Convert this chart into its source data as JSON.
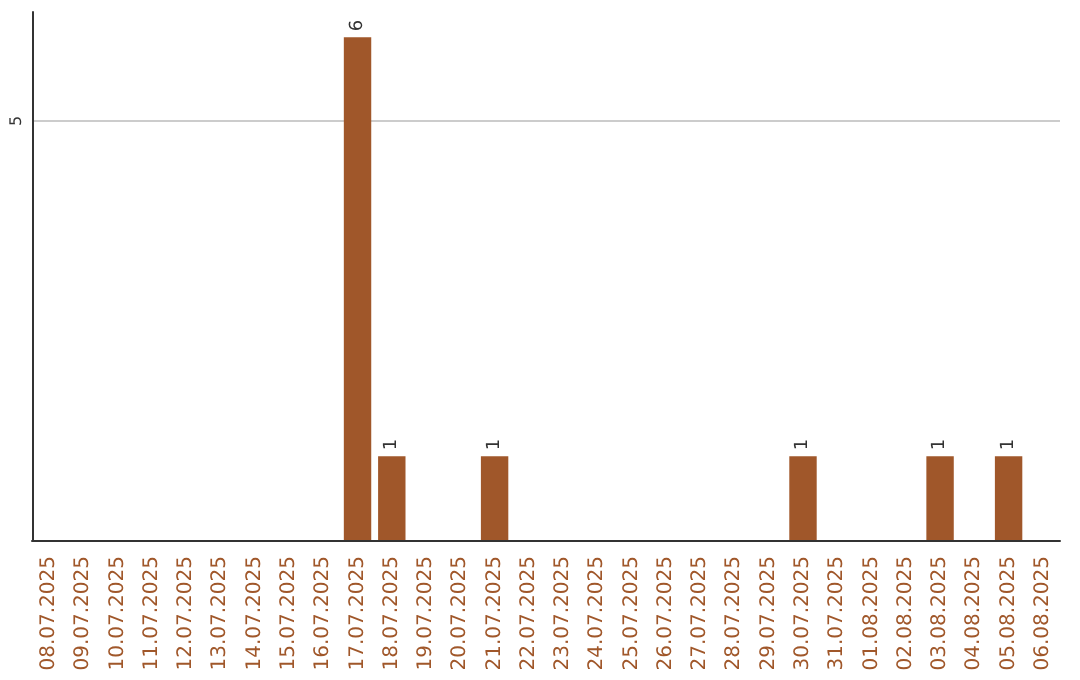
{
  "chart_data": {
    "type": "bar",
    "categories": [
      "08.07.2025",
      "09.07.2025",
      "10.07.2025",
      "11.07.2025",
      "12.07.2025",
      "13.07.2025",
      "14.07.2025",
      "15.07.2025",
      "16.07.2025",
      "17.07.2025",
      "18.07.2025",
      "19.07.2025",
      "20.07.2025",
      "21.07.2025",
      "22.07.2025",
      "23.07.2025",
      "24.07.2025",
      "25.07.2025",
      "26.07.2025",
      "27.07.2025",
      "28.07.2025",
      "29.07.2025",
      "30.07.2025",
      "31.07.2025",
      "01.08.2025",
      "02.08.2025",
      "03.08.2025",
      "04.08.2025",
      "05.08.2025",
      "06.08.2025"
    ],
    "values": [
      0,
      0,
      0,
      0,
      0,
      0,
      0,
      0,
      0,
      6,
      1,
      0,
      0,
      1,
      0,
      0,
      0,
      0,
      0,
      0,
      0,
      0,
      1,
      0,
      0,
      0,
      1,
      0,
      1,
      0
    ],
    "value_labels": [
      null,
      null,
      null,
      null,
      null,
      null,
      null,
      null,
      null,
      "6",
      "1",
      null,
      null,
      "1",
      null,
      null,
      null,
      null,
      null,
      null,
      null,
      null,
      "1",
      null,
      null,
      null,
      "1",
      null,
      "1",
      null
    ],
    "color": "#a0572a",
    "ylim": [
      0,
      6.3
    ],
    "yticks": [
      5
    ],
    "grid": "y"
  }
}
